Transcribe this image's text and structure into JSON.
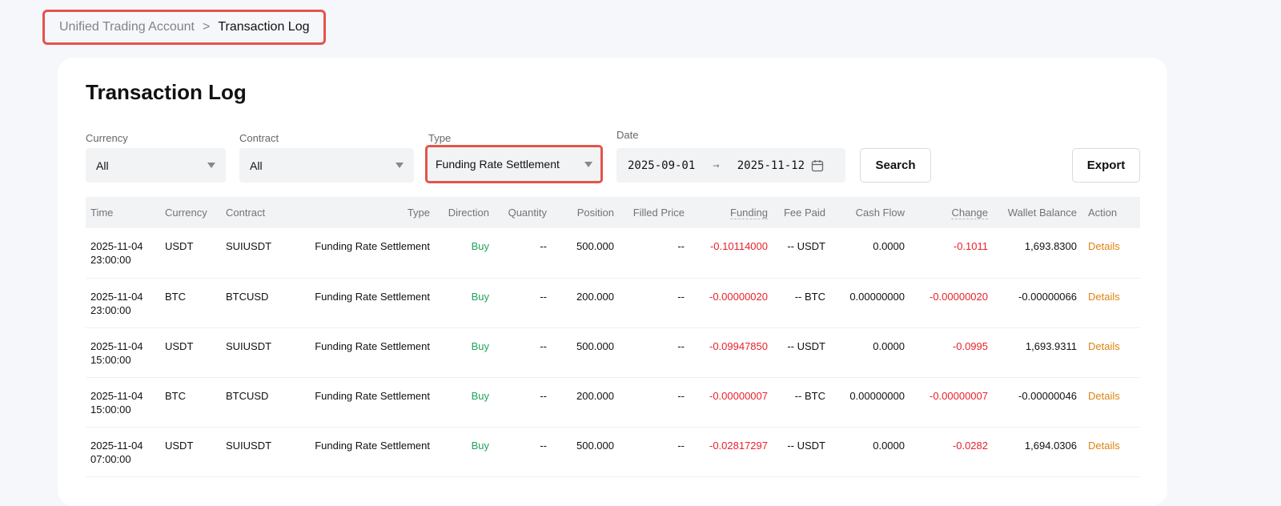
{
  "breadcrumb": {
    "parent": "Unified Trading Account",
    "separator": ">",
    "current": "Transaction Log"
  },
  "title": "Transaction Log",
  "filters": {
    "currency": {
      "label": "Currency",
      "value": "All"
    },
    "contract": {
      "label": "Contract",
      "value": "All"
    },
    "type": {
      "label": "Type",
      "value": "Funding Rate Settlement"
    },
    "date": {
      "label": "Date",
      "start": "2025-09-01",
      "arrow": "→",
      "end": "2025-11-12"
    },
    "search_label": "Search",
    "export_label": "Export"
  },
  "columns": [
    "Time",
    "Currency",
    "Contract",
    "Type",
    "Direction",
    "Quantity",
    "Position",
    "Filled Price",
    "Funding",
    "Fee Paid",
    "Cash Flow",
    "Change",
    "Wallet Balance",
    "Action"
  ],
  "rows": [
    {
      "date": "2025-11-04",
      "time": "23:00:00",
      "currency": "USDT",
      "contract": "SUIUSDT",
      "type": "Funding Rate Settlement",
      "direction": "Buy",
      "quantity": "--",
      "position": "500.000",
      "filled_price": "--",
      "funding": "-0.10114000",
      "fee_paid": "-- USDT",
      "cash_flow": "0.0000",
      "change": "-0.1011",
      "wallet_balance": "1,693.8300",
      "action": "Details"
    },
    {
      "date": "2025-11-04",
      "time": "23:00:00",
      "currency": "BTC",
      "contract": "BTCUSD",
      "type": "Funding Rate Settlement",
      "direction": "Buy",
      "quantity": "--",
      "position": "200.000",
      "filled_price": "--",
      "funding": "-0.00000020",
      "fee_paid": "-- BTC",
      "cash_flow": "0.00000000",
      "change": "-0.00000020",
      "wallet_balance": "-0.00000066",
      "action": "Details"
    },
    {
      "date": "2025-11-04",
      "time": "15:00:00",
      "currency": "USDT",
      "contract": "SUIUSDT",
      "type": "Funding Rate Settlement",
      "direction": "Buy",
      "quantity": "--",
      "position": "500.000",
      "filled_price": "--",
      "funding": "-0.09947850",
      "fee_paid": "-- USDT",
      "cash_flow": "0.0000",
      "change": "-0.0995",
      "wallet_balance": "1,693.9311",
      "action": "Details"
    },
    {
      "date": "2025-11-04",
      "time": "15:00:00",
      "currency": "BTC",
      "contract": "BTCUSD",
      "type": "Funding Rate Settlement",
      "direction": "Buy",
      "quantity": "--",
      "position": "200.000",
      "filled_price": "--",
      "funding": "-0.00000007",
      "fee_paid": "-- BTC",
      "cash_flow": "0.00000000",
      "change": "-0.00000007",
      "wallet_balance": "-0.00000046",
      "action": "Details"
    },
    {
      "date": "2025-11-04",
      "time": "07:00:00",
      "currency": "USDT",
      "contract": "SUIUSDT",
      "type": "Funding Rate Settlement",
      "direction": "Buy",
      "quantity": "--",
      "position": "500.000",
      "filled_price": "--",
      "funding": "-0.02817297",
      "fee_paid": "-- USDT",
      "cash_flow": "0.0000",
      "change": "-0.0282",
      "wallet_balance": "1,694.0306",
      "action": "Details"
    }
  ],
  "colors": {
    "buy": "#21a35b",
    "negative": "#e8222b",
    "link": "#dd8412",
    "highlight": "#e5534b"
  }
}
